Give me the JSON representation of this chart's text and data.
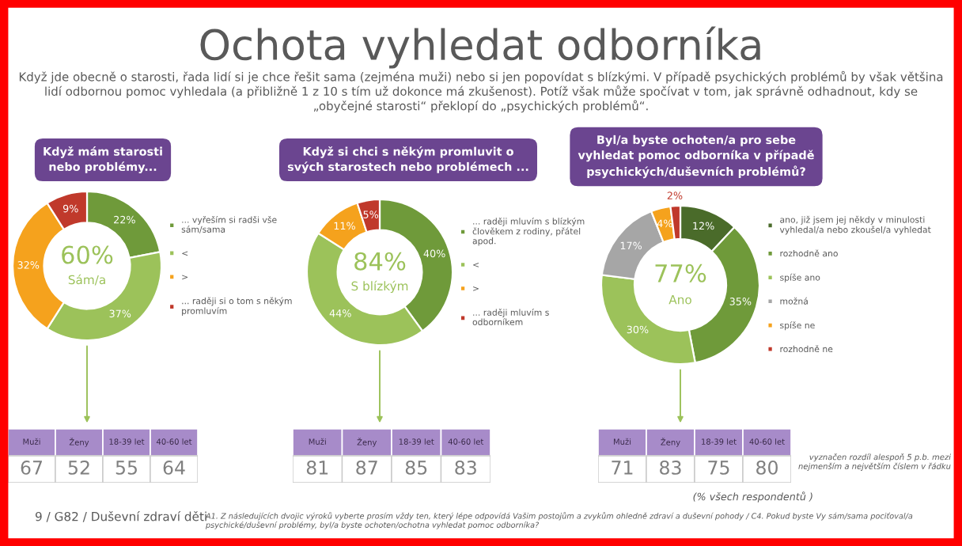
{
  "chart_data": [
    {
      "type": "other",
      "title": "Ochota vyhledat odborníka",
      "subtitle": "Když jde obecně o starosti, řada lidí si je chce řešit sama (zejména muži) nebo si jen popovídat s blízkými. V případě psychických problémů by však většina\nlidí odbornou pomoc vyhledala (a přibližně 1 z 10 s tím už dokonce má zkušenost). Potíž však může spočívat v tom, jak správně odhadnout, kdy se\n„obyčejné starosti“ překlopí do „psychických problémů“.",
      "annotations": [
        "vyznačen rozdíl alespoň 5 p.b. mezi\nnejmenším a největším číslem v řádku",
        "(% všech respondentů )",
        "9 / G82 / Duševní zdraví děti",
        "A1. Z následujících dvojic výroků vyberte prosím vždy ten, který lépe odpovídá Vašim postojům a zvykům ohledně zdraví a duševní pohody / C4. Pokud byste Vy sám/sama pociťoval/a\npsychické/duševní problémy, byl/a byste ochoten/ochotna vyhledat pomoc odborníka?"
      ]
    },
    {
      "type": "donut",
      "title": "Když mám starosti\nnebo problémy...",
      "categories": [
        "... vyřeším si radši vše\nsám/sama",
        "<",
        ">",
        "... raději si o tom s někým\npromluvím"
      ],
      "values": [
        22,
        37,
        32,
        9
      ],
      "value_labels": [
        "22%",
        "37%",
        "32%",
        "9%"
      ],
      "colors": [
        "#6f9a3a",
        "#9cc25a",
        "#f5a21d",
        "#c0392b"
      ],
      "legend": "right",
      "annotations": [
        "60%",
        "Sám/a"
      ]
    },
    {
      "type": "other",
      "categories": [
        "Muži",
        "Ženy",
        "18-39 let",
        "40-60 let"
      ],
      "values": [
        67,
        52,
        55,
        64
      ],
      "data_labels": true
    },
    {
      "type": "donut",
      "title": "Když si chci s někým promluvit o\nsvých starostech nebo problémech ...",
      "categories": [
        "... raději mluvím s blízkým\nčlověkem z rodiny, přátel\napod.",
        "<",
        ">",
        "... raději mluvím s\nodborníkem"
      ],
      "values": [
        40,
        44,
        11,
        5
      ],
      "value_labels": [
        "40%",
        "44%",
        "11%",
        "5%"
      ],
      "colors": [
        "#6f9a3a",
        "#9cc25a",
        "#f5a21d",
        "#c0392b"
      ],
      "legend": "right",
      "annotations": [
        "84%",
        "S blízkým"
      ]
    },
    {
      "type": "other",
      "categories": [
        "Muži",
        "Ženy",
        "18-39 let",
        "40-60 let"
      ],
      "values": [
        81,
        87,
        85,
        83
      ],
      "data_labels": true
    },
    {
      "type": "donut",
      "title": "Byl/a byste ochoten/a pro sebe\nvyhledat pomoc odborníka v případě\npsychických/duševních problémů?",
      "categories": [
        "ano, již jsem jej někdy v minulosti\nvyhledal/a nebo zkoušel/a vyhledat",
        "rozhodně ano",
        "spíše ano",
        "možná",
        "spíše ne",
        "rozhodně ne"
      ],
      "values": [
        12,
        35,
        30,
        17,
        4,
        2
      ],
      "value_labels": [
        "12%",
        "35%",
        "30%",
        "17%",
        "4%",
        "2%"
      ],
      "colors": [
        "#4a6b2a",
        "#6f9a3a",
        "#9cc25a",
        "#a6a6a6",
        "#f5a21d",
        "#c0392b"
      ],
      "legend": "right",
      "annotations": [
        "77%",
        "Ano"
      ]
    },
    {
      "type": "other",
      "categories": [
        "Muži",
        "Ženy",
        "18-39 let",
        "40-60 let"
      ],
      "values": [
        71,
        83,
        75,
        80
      ],
      "data_labels": true
    }
  ]
}
